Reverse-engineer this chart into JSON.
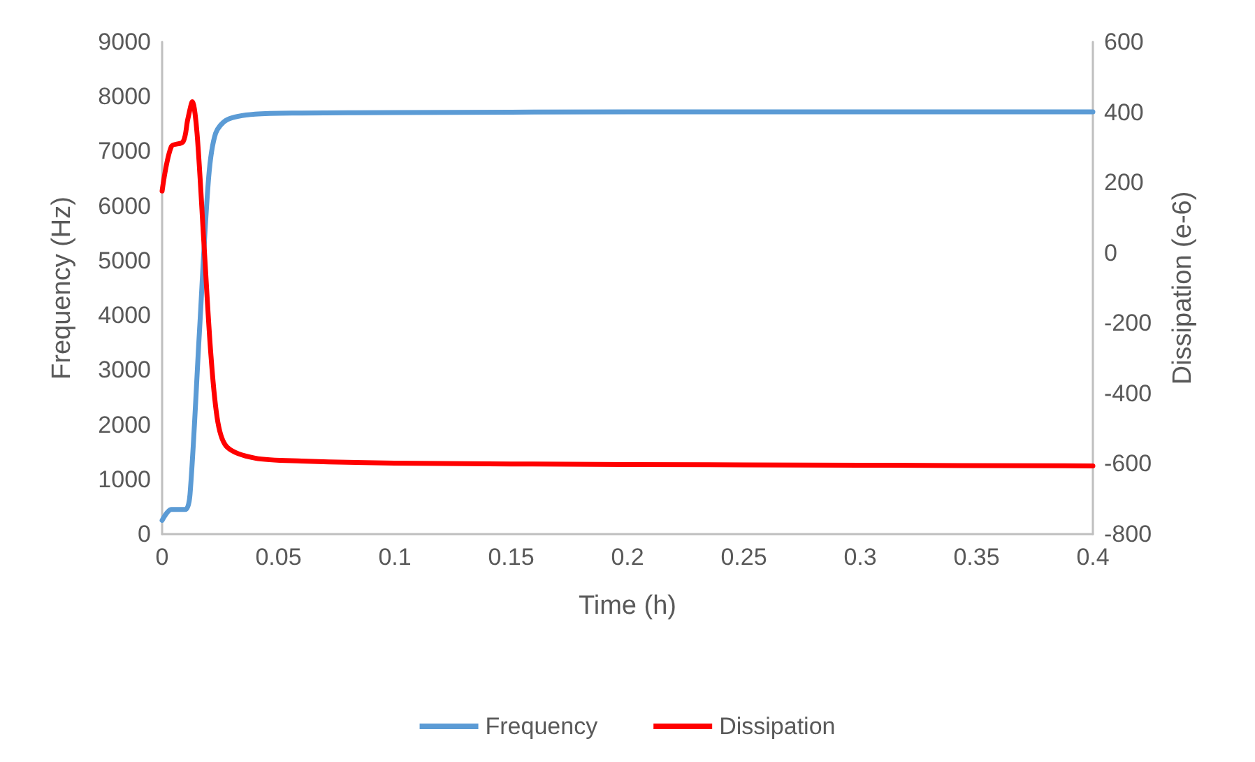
{
  "chart_data": {
    "type": "line",
    "xlabel": "Time (h)",
    "ylabel": "Frequency (Hz)",
    "y2label": "Dissipation (e-6)",
    "xlim": [
      0,
      0.4
    ],
    "xticks": [
      0,
      0.05,
      0.1,
      0.15,
      0.2,
      0.25,
      0.3,
      0.35,
      0.4
    ],
    "ylim": [
      0,
      9000
    ],
    "yticks": [
      0,
      1000,
      2000,
      3000,
      4000,
      5000,
      6000,
      7000,
      8000,
      9000
    ],
    "y2lim": [
      -800,
      600
    ],
    "y2ticks": [
      -800,
      -600,
      -400,
      -200,
      0,
      200,
      400,
      600
    ],
    "grid": false,
    "legend": "bottom",
    "marker": "none",
    "line_style": "solid",
    "series": [
      {
        "name": "Frequency",
        "color": "#5b9bd5",
        "x": [
          0,
          0.004,
          0.01,
          0.012,
          0.016,
          0.02,
          0.023,
          0.028,
          0.04,
          0.06,
          0.1,
          0.2,
          0.3,
          0.4
        ],
        "values": [
          250,
          450,
          450,
          730,
          3670,
          6520,
          7330,
          7580,
          7680,
          7700,
          7710,
          7720,
          7720,
          7720
        ]
      },
      {
        "name": "Dissipation",
        "color": "#ff0000",
        "axis": "y2",
        "x": [
          0,
          0.004,
          0.009,
          0.011,
          0.013,
          0.015,
          0.018,
          0.021,
          0.024,
          0.028,
          0.04,
          0.06,
          0.1,
          0.2,
          0.3,
          0.4
        ],
        "values": [
          176,
          303,
          316,
          379,
          430,
          341,
          24,
          -293,
          -483,
          -553,
          -584,
          -592,
          -598,
          -602,
          -604,
          -606
        ]
      }
    ]
  }
}
